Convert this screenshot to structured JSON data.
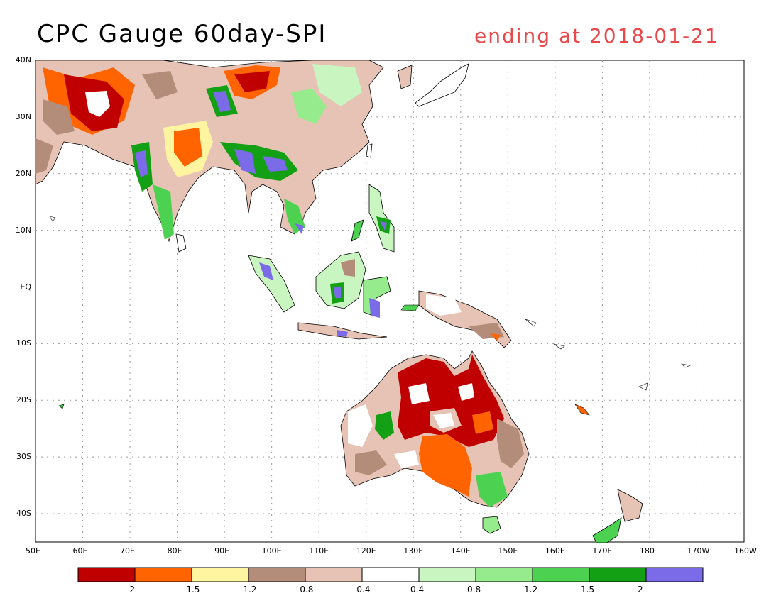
{
  "title": "CPC Gauge 60day-SPI",
  "subtitle": "ending at 2018-01-21",
  "colors": {
    "title": "#000000",
    "subtitle": "#e8484a",
    "frame": "#000000",
    "grid": "#9a9a9a",
    "coast": "#000000"
  },
  "map": {
    "lat_labels": [
      "40N",
      "30N",
      "20N",
      "10N",
      "EQ",
      "10S",
      "20S",
      "30S",
      "40S"
    ],
    "lon_labels": [
      "50E",
      "60E",
      "70E",
      "80E",
      "90E",
      "100E",
      "110E",
      "120E",
      "130E",
      "140E",
      "150E",
      "160E",
      "170E",
      "180",
      "170W",
      "160W"
    ]
  },
  "legend": {
    "bins": [
      {
        "color": "#c00000"
      },
      {
        "color": "#ff6400"
      },
      {
        "color": "#fff5a0"
      },
      {
        "color": "#b48c7a"
      },
      {
        "color": "#e6c3b4"
      },
      {
        "color": "#ffffff"
      },
      {
        "color": "#c8f5c0"
      },
      {
        "color": "#96eb8c"
      },
      {
        "color": "#4cd250"
      },
      {
        "color": "#14a014"
      },
      {
        "color": "#7c6be8"
      }
    ],
    "tick_labels": [
      "-2",
      "-1.5",
      "-1.2",
      "-0.8",
      "-0.4",
      "0.4",
      "0.8",
      "1.2",
      "1.5",
      "2"
    ]
  }
}
